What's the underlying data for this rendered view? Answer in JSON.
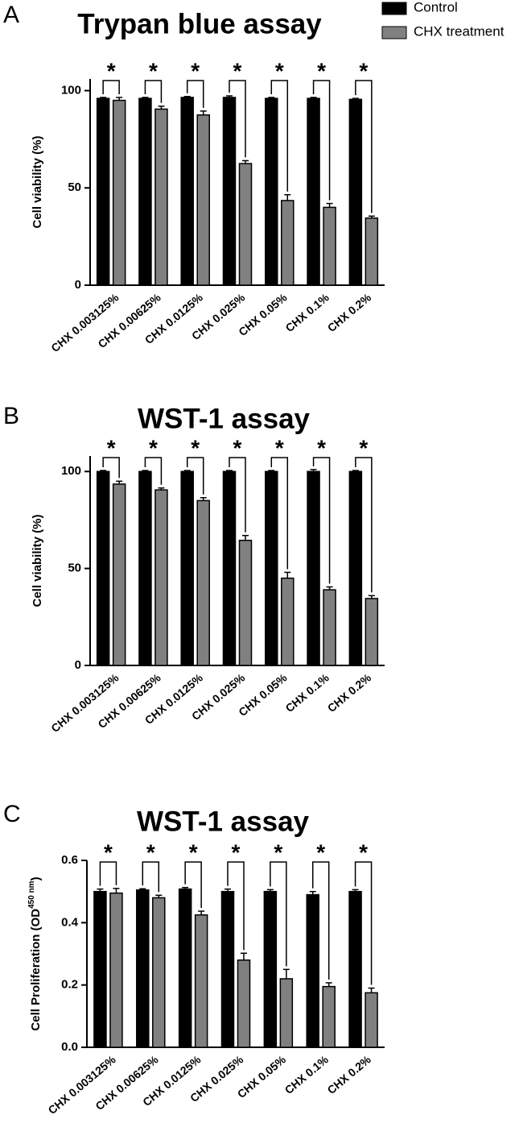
{
  "chart_data": [
    {
      "type": "bar",
      "panel": "A",
      "title": "Trypan blue assay",
      "ylabel": "Cell viability (%)",
      "legend": "top-right",
      "categories": [
        "CHX 0.003125%",
        "CHX 0.00625%",
        "CHX 0.0125%",
        "CHX 0.025%",
        "CHX 0.05%",
        "CHX 0.1%",
        "CHX 0.2%"
      ],
      "series": [
        {
          "name": "Control",
          "color": "#000000",
          "values": [
            96,
            96,
            96.5,
            96.5,
            96,
            96,
            95.5
          ],
          "errors": [
            0.5,
            0.5,
            0.5,
            0.8,
            0.5,
            0.5,
            0.5
          ]
        },
        {
          "name": "CHX treatment",
          "color": "#808080",
          "values": [
            95,
            90.5,
            87.5,
            62.5,
            43.5,
            40,
            34.5
          ],
          "errors": [
            1.5,
            1.5,
            2,
            1.5,
            3,
            2,
            1
          ]
        }
      ],
      "annotations": [
        "*",
        "*",
        "*",
        "*",
        "*",
        "*",
        "*"
      ],
      "ylim": [
        0,
        106
      ],
      "yticks": [
        0,
        50,
        100
      ]
    },
    {
      "type": "bar",
      "panel": "B",
      "title": "WST-1 assay",
      "ylabel": "Cell viability (%)",
      "categories": [
        "CHX 0.003125%",
        "CHX 0.00625%",
        "CHX 0.0125%",
        "CHX 0.025%",
        "CHX 0.05%",
        "CHX 0.1%",
        "CHX 0.2%"
      ],
      "series": [
        {
          "color": "#000000",
          "values": [
            100,
            100,
            100,
            100,
            100,
            100,
            100
          ],
          "errors": [
            0.5,
            0.5,
            0.5,
            0.5,
            0.5,
            1,
            0.5
          ]
        },
        {
          "color": "#808080",
          "values": [
            93.5,
            90.5,
            85,
            64.5,
            45,
            39,
            34.5
          ],
          "errors": [
            1.5,
            1,
            1.5,
            2.5,
            3,
            1.5,
            1.5
          ]
        }
      ],
      "annotations": [
        "*",
        "*",
        "*",
        "*",
        "*",
        "*",
        "*"
      ],
      "ylim": [
        0,
        108
      ],
      "yticks": [
        0,
        50,
        100
      ]
    },
    {
      "type": "bar",
      "panel": "C",
      "title": "WST-1 assay",
      "ylabel": {
        "text": "Cell Proliferation (OD",
        "superscript": "450 nm",
        "suffix": ")"
      },
      "categories": [
        "CHX 0.003125%",
        "CHX 0.00625%",
        "CHX 0.0125%",
        "CHX 0.025%",
        "CHX 0.05%",
        "CHX 0.1%",
        "CHX 0.2%"
      ],
      "series": [
        {
          "color": "#000000",
          "values": [
            0.5,
            0.505,
            0.508,
            0.5,
            0.5,
            0.49,
            0.5
          ],
          "errors": [
            0.008,
            0.004,
            0.005,
            0.008,
            0.006,
            0.01,
            0.006
          ]
        },
        {
          "color": "#808080",
          "values": [
            0.495,
            0.48,
            0.425,
            0.28,
            0.22,
            0.195,
            0.175
          ],
          "errors": [
            0.015,
            0.008,
            0.012,
            0.022,
            0.03,
            0.012,
            0.015
          ]
        }
      ],
      "annotations": [
        "*",
        "*",
        "*",
        "*",
        "*",
        "*",
        "*"
      ],
      "ylim": [
        0,
        0.6
      ],
      "yticks": [
        {
          "value": 0,
          "label": "0.0"
        },
        0.2,
        0.4,
        0.6
      ]
    }
  ]
}
